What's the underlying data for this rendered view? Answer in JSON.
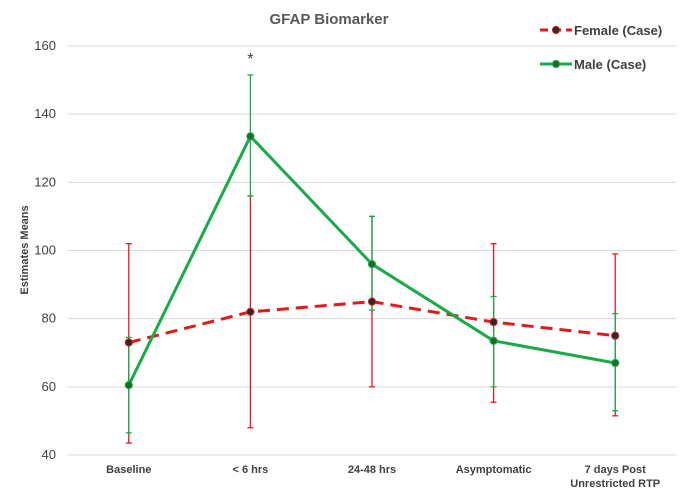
{
  "chart_data": {
    "type": "line",
    "title": "GFAP Biomarker",
    "ylabel": "Estimates Means",
    "xlabel": "",
    "ylim": [
      40,
      160
    ],
    "yticks": [
      40,
      60,
      80,
      100,
      120,
      140,
      160
    ],
    "grid": true,
    "legend_position": "top-right",
    "categories": [
      [
        "Baseline"
      ],
      [
        "< 6 hrs"
      ],
      [
        "24-48 hrs"
      ],
      [
        "Asymptomatic"
      ],
      [
        "7 days Post",
        "Unrestricted RTP"
      ]
    ],
    "series": [
      {
        "name": "Female (Case)",
        "color": "#e31a1c",
        "line_style": "dashed",
        "marker_color": "#2b2b2b",
        "values": [
          73,
          82,
          85,
          79,
          75
        ],
        "error_low": [
          43.5,
          48,
          60,
          55.5,
          51.5
        ],
        "error_high": [
          102,
          116,
          110,
          102,
          99
        ]
      },
      {
        "name": "Male (Case)",
        "color": "#1aaa4a",
        "line_style": "solid",
        "marker_color": "#1f6b2a",
        "values": [
          60.5,
          133.5,
          96,
          73.5,
          67
        ],
        "error_low": [
          46.5,
          116,
          82.5,
          60,
          53
        ],
        "error_high": [
          74.5,
          151.5,
          110,
          86.5,
          81.5
        ]
      }
    ],
    "annotations": [
      {
        "text": "*",
        "category_index": 1
      }
    ]
  }
}
